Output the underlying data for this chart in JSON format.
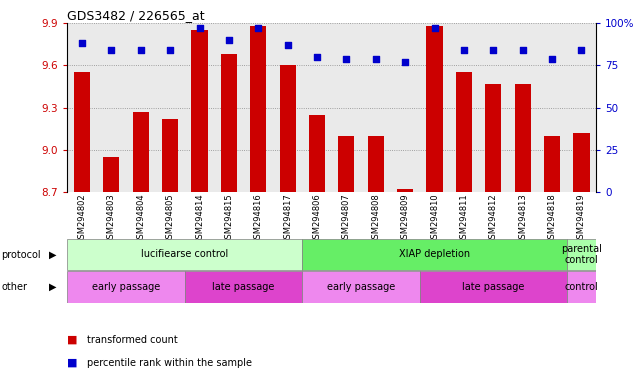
{
  "title": "GDS3482 / 226565_at",
  "samples": [
    "GSM294802",
    "GSM294803",
    "GSM294804",
    "GSM294805",
    "GSM294814",
    "GSM294815",
    "GSM294816",
    "GSM294817",
    "GSM294806",
    "GSM294807",
    "GSM294808",
    "GSM294809",
    "GSM294810",
    "GSM294811",
    "GSM294812",
    "GSM294813",
    "GSM294818",
    "GSM294819"
  ],
  "transformed_counts": [
    9.55,
    8.95,
    9.27,
    9.22,
    9.85,
    9.68,
    9.88,
    9.6,
    9.25,
    9.1,
    9.1,
    8.72,
    9.88,
    9.55,
    9.47,
    9.47,
    9.1,
    9.12
  ],
  "percentile_ranks": [
    88,
    84,
    84,
    84,
    97,
    90,
    97,
    87,
    80,
    79,
    79,
    77,
    97,
    84,
    84,
    84,
    79,
    84
  ],
  "ylim_left": [
    8.7,
    9.9
  ],
  "ylim_right": [
    0,
    100
  ],
  "yticks_left": [
    8.7,
    9.0,
    9.3,
    9.6,
    9.9
  ],
  "yticks_right": [
    0,
    25,
    50,
    75,
    100
  ],
  "bar_color": "#cc0000",
  "dot_color": "#0000cc",
  "prot_groups": [
    {
      "label": "lucifiearse control",
      "start": 0,
      "end": 8,
      "color": "#ccffcc"
    },
    {
      "label": "XIAP depletion",
      "start": 8,
      "end": 17,
      "color": "#66ee66"
    },
    {
      "label": "parental\ncontrol",
      "start": 17,
      "end": 18,
      "color": "#ccffcc"
    }
  ],
  "other_groups": [
    {
      "label": "early passage",
      "start": 0,
      "end": 4,
      "color": "#ee88ee"
    },
    {
      "label": "late passage",
      "start": 4,
      "end": 8,
      "color": "#dd44cc"
    },
    {
      "label": "early passage",
      "start": 8,
      "end": 12,
      "color": "#ee88ee"
    },
    {
      "label": "late passage",
      "start": 12,
      "end": 17,
      "color": "#dd44cc"
    },
    {
      "label": "control",
      "start": 17,
      "end": 18,
      "color": "#ee88ee"
    }
  ],
  "bar_width": 0.55,
  "background_color": "#ffffff",
  "grid_color": "#888888",
  "col_bg_color": "#cccccc"
}
